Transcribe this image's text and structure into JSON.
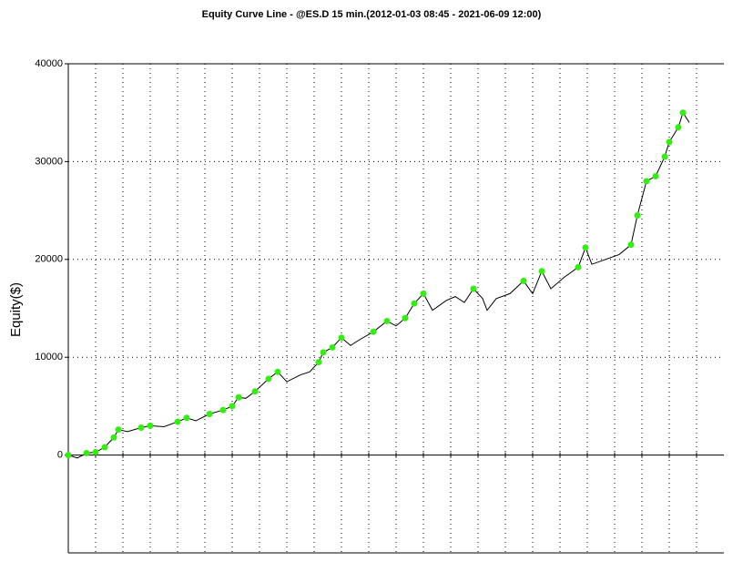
{
  "chart_data": {
    "type": "line",
    "title": "Equity Curve Line - @ES.D 15 min.(2012-01-03 08:45 - 2021-06-09 12:00)",
    "y_label": "Equity($)",
    "x": [
      0,
      2,
      4,
      6,
      8,
      10,
      11,
      13,
      16,
      18,
      21,
      24,
      26,
      28,
      31,
      34,
      36,
      37.4,
      39,
      41,
      44,
      46,
      48,
      51,
      53,
      55,
      56,
      58,
      60,
      62,
      64,
      67,
      70,
      72,
      74,
      76,
      78,
      80,
      83,
      85,
      87,
      89,
      91,
      92,
      94,
      97,
      100,
      102,
      104,
      106,
      109,
      112,
      113.6,
      115,
      118,
      121,
      123.6,
      125,
      127,
      129,
      131,
      132,
      134,
      135,
      136.4
    ],
    "series": [
      {
        "color": "#000000",
        "marker_color": "#33ee11",
        "values": [
          0,
          -300,
          200,
          300,
          800,
          1800,
          2600,
          2400,
          2800,
          3000,
          2900,
          3400,
          3800,
          3500,
          4200,
          4600,
          5000,
          5900,
          5800,
          6500,
          7800,
          8500,
          7500,
          8200,
          8500,
          9500,
          10500,
          11000,
          12000,
          11200,
          11800,
          12600,
          13700,
          13200,
          14000,
          15500,
          16500,
          14800,
          15800,
          16200,
          15600,
          17000,
          16000,
          14800,
          16000,
          16500,
          17800,
          16500,
          18800,
          17000,
          18200,
          19200,
          21200,
          19500,
          20000,
          20500,
          21500,
          24500,
          28000,
          28500,
          30500,
          32000,
          33500,
          35000,
          34000
        ]
      }
    ],
    "xlim": [
      0,
      144
    ],
    "xticks": [
      6,
      12,
      18,
      24,
      30,
      36,
      42,
      48,
      54,
      60,
      66,
      72,
      78,
      84,
      90,
      96,
      102,
      108,
      114,
      120,
      126,
      132,
      138
    ],
    "ylim": [
      -10000,
      40000
    ],
    "yticks": [
      0,
      10000,
      20000,
      30000,
      40000
    ],
    "grid": true
  }
}
